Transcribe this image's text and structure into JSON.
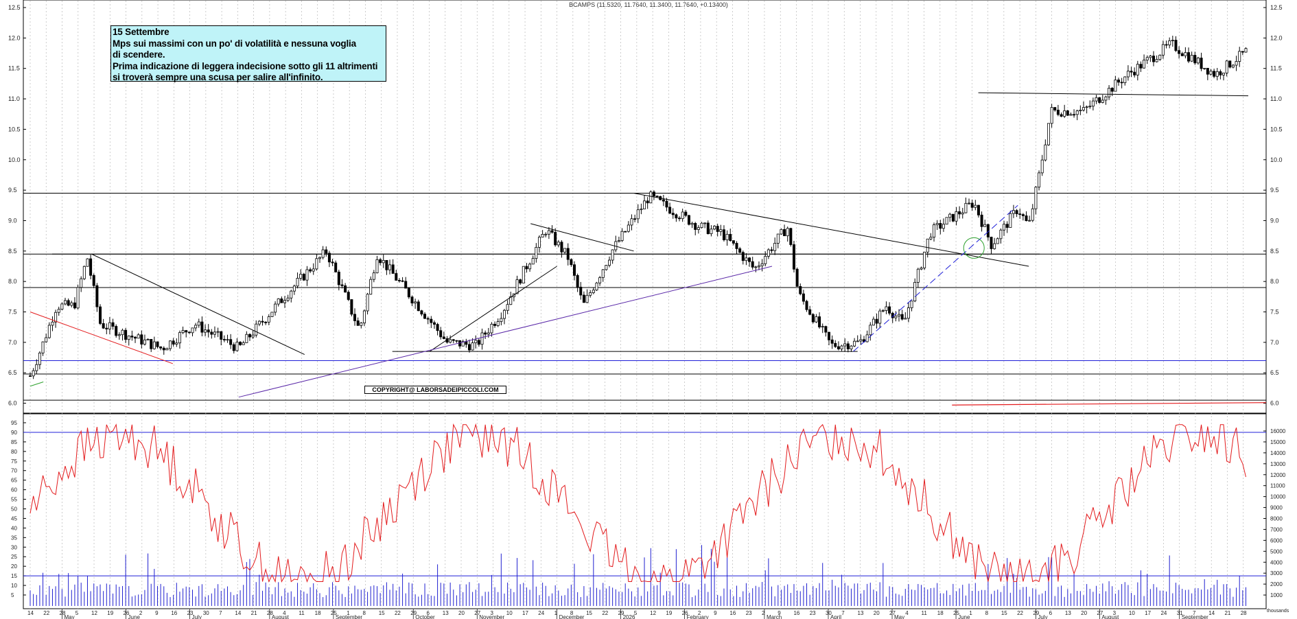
{
  "header": {
    "ticker_line": "BCAMPS (11.5320, 11.7640, 11.3400, 11.7640, +0.13400)"
  },
  "note": {
    "lines": [
      "15 Settembre",
      "Mps sui massimi con un po' di volatilità e nessuna voglia",
      "di scendere.",
      "Prima indicazione di leggera indecisione sotto gli 11 altrimenti",
      "si troverà sempre una scusa per salire all'infinito."
    ]
  },
  "copyright": "COPYRIGHT@ LABORSADEIPICCOLI.COM",
  "colors": {
    "background": "#ffffff",
    "candle": "#000000",
    "oscillator": "#e31a1c",
    "volume": "#2020d0",
    "trend_blue": "#1f1fd8",
    "trend_purple": "#5a28a8",
    "trend_red": "#e31a1c",
    "support_circle": "#2ca02c"
  },
  "chart_data": [
    {
      "type": "candlestick",
      "ticker": "BCAMPS",
      "ylim": [
        5.95,
        12.5
      ],
      "yticks": [
        "12.5",
        "12.0",
        "11.5",
        "11.0",
        "10.5",
        "10.0",
        "9.5",
        "9.0",
        "8.5",
        "8.0",
        "7.5",
        "7.0",
        "6.5",
        "6.0"
      ],
      "x_day_labels": [
        "14",
        "22",
        "28",
        "5",
        "12",
        "19",
        "26",
        "2",
        "9",
        "16",
        "23",
        "30",
        "7",
        "14",
        "21",
        "28",
        "4",
        "11",
        "18",
        "25",
        "1",
        "8",
        "15",
        "22",
        "29",
        "6",
        "13",
        "20",
        "27",
        "3",
        "10",
        "17",
        "24",
        "1",
        "8",
        "15",
        "22",
        "29",
        "5",
        "12",
        "19",
        "26",
        "2",
        "9",
        "16",
        "23",
        "2",
        "9",
        "16",
        "23",
        "30",
        "7",
        "13",
        "20",
        "27",
        "4",
        "11",
        "18",
        "25",
        "1",
        "8",
        "15",
        "22",
        "29",
        "6",
        "13",
        "20",
        "27",
        "3",
        "10",
        "17",
        "24",
        "31",
        "7",
        "14",
        "21",
        "28"
      ],
      "x_month_labels": [
        "May",
        "June",
        "July",
        "August",
        "September",
        "October",
        "November",
        "December",
        "2026",
        "February",
        "March",
        "April",
        "May",
        "June",
        "July",
        "August",
        "September"
      ],
      "keyframes": [
        {
          "d": 0,
          "p": 6.45
        },
        {
          "d": 5,
          "p": 6.9
        },
        {
          "d": 12,
          "p": 7.6
        },
        {
          "d": 20,
          "p": 7.6
        },
        {
          "d": 26,
          "p": 8.4
        },
        {
          "d": 32,
          "p": 7.3
        },
        {
          "d": 60,
          "p": 6.9
        },
        {
          "d": 75,
          "p": 7.3
        },
        {
          "d": 95,
          "p": 6.9
        },
        {
          "d": 112,
          "p": 7.6
        },
        {
          "d": 135,
          "p": 8.5
        },
        {
          "d": 150,
          "p": 7.2
        },
        {
          "d": 158,
          "p": 8.45
        },
        {
          "d": 190,
          "p": 7.0
        },
        {
          "d": 203,
          "p": 6.95
        },
        {
          "d": 215,
          "p": 7.5
        },
        {
          "d": 235,
          "p": 8.85
        },
        {
          "d": 245,
          "p": 8.4
        },
        {
          "d": 252,
          "p": 7.6
        },
        {
          "d": 265,
          "p": 8.5
        },
        {
          "d": 282,
          "p": 9.4
        },
        {
          "d": 305,
          "p": 8.9
        },
        {
          "d": 315,
          "p": 8.8
        },
        {
          "d": 330,
          "p": 8.2
        },
        {
          "d": 345,
          "p": 8.9
        },
        {
          "d": 350,
          "p": 7.8
        },
        {
          "d": 365,
          "p": 6.95
        },
        {
          "d": 378,
          "p": 7.0
        },
        {
          "d": 390,
          "p": 7.6
        },
        {
          "d": 398,
          "p": 7.3
        },
        {
          "d": 410,
          "p": 8.8
        },
        {
          "d": 430,
          "p": 9.3
        },
        {
          "d": 438,
          "p": 8.6
        },
        {
          "d": 450,
          "p": 9.2
        },
        {
          "d": 455,
          "p": 8.9
        },
        {
          "d": 460,
          "p": 9.8
        },
        {
          "d": 465,
          "p": 10.8
        },
        {
          "d": 480,
          "p": 10.8
        },
        {
          "d": 500,
          "p": 11.4
        },
        {
          "d": 520,
          "p": 11.9
        },
        {
          "d": 540,
          "p": 11.4
        },
        {
          "d": 555,
          "p": 11.8
        }
      ],
      "reference_levels": [
        9.45,
        8.45,
        7.9,
        6.7,
        6.48,
        6.05
      ],
      "trendlines": [
        {
          "color": "trend_red",
          "from": [
            0,
            7.5
          ],
          "to": [
            65,
            6.65
          ]
        },
        {
          "color": "candle",
          "from": [
            28,
            8.45
          ],
          "to": [
            125,
            6.8
          ]
        },
        {
          "color": "candle",
          "from": [
            182,
            6.85
          ],
          "to": [
            240,
            8.25
          ]
        },
        {
          "color": "candle",
          "from": [
            228,
            8.95
          ],
          "to": [
            275,
            8.5
          ]
        },
        {
          "color": "candle",
          "from": [
            275,
            9.45
          ],
          "to": [
            455,
            8.25
          ]
        },
        {
          "color": "trend_purple",
          "from": [
            95,
            6.1
          ],
          "to": [
            338,
            8.25
          ]
        },
        {
          "color": "trend_blue",
          "from": [
            375,
            6.85
          ],
          "to": [
            450,
            9.25
          ],
          "dashed": true
        },
        {
          "color": "candle",
          "from": [
            432,
            11.1
          ],
          "to": [
            555,
            11.05
          ]
        }
      ],
      "segments": [
        {
          "level": 8.45,
          "from": [
            10,
            460
          ]
        },
        {
          "level": 6.85,
          "from": [
            165,
            377
          ]
        }
      ]
    },
    {
      "type": "line",
      "name": "oscillator",
      "left_yticks": [
        "95",
        "90",
        "85",
        "80",
        "75",
        "70",
        "65",
        "60",
        "55",
        "50",
        "45",
        "40",
        "35",
        "30",
        "25",
        "20",
        "15",
        "10",
        "5"
      ],
      "bands": [
        90,
        15
      ],
      "description_free": true
    },
    {
      "type": "bar",
      "name": "volume",
      "right_yticks": [
        "16000",
        "15000",
        "14000",
        "13000",
        "12000",
        "11000",
        "10000",
        "9000",
        "8000",
        "7000",
        "6000",
        "5000",
        "4000",
        "3000",
        "2000",
        "1000"
      ],
      "scale_label": "thousands"
    }
  ]
}
